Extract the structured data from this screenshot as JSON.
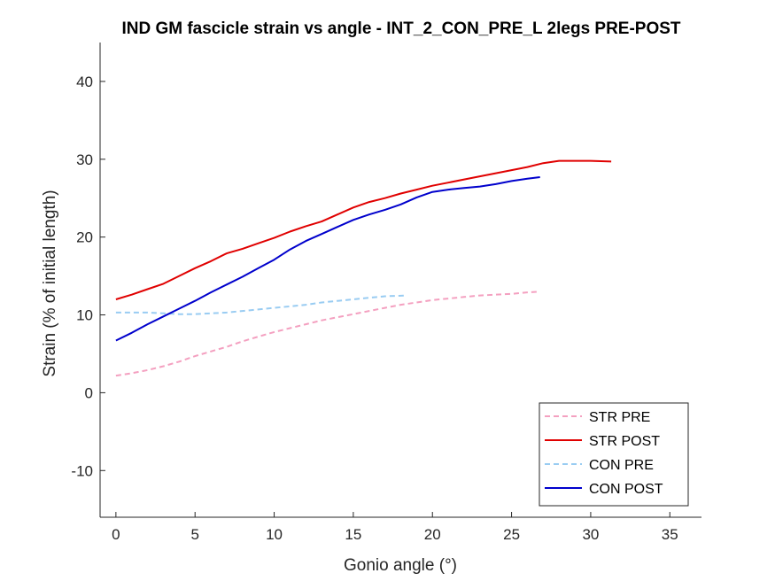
{
  "chart_data": {
    "type": "line",
    "title": "IND GM fascicle strain vs angle - INT_2_CON_PRE_L 2legs PRE-POST",
    "xlabel": "Gonio angle (°)",
    "ylabel": "Strain (% of initial length)",
    "xlim": [
      -1,
      37
    ],
    "ylim": [
      -16,
      45
    ],
    "xticks": [
      0,
      5,
      10,
      15,
      20,
      25,
      30,
      35
    ],
    "yticks": [
      -10,
      0,
      10,
      20,
      30,
      40
    ],
    "grid": false,
    "legend_position": "bottom-right",
    "series": [
      {
        "name": "STR PRE",
        "color": "#f4a0c0",
        "dash": true,
        "x": [
          0,
          1,
          2,
          3,
          4,
          5,
          6,
          7,
          8,
          9,
          10,
          11,
          12,
          13,
          14,
          15,
          16,
          17,
          18,
          19,
          20,
          21,
          22,
          23,
          24,
          25,
          26,
          26.8
        ],
        "y": [
          2.2,
          2.5,
          2.9,
          3.4,
          4.0,
          4.7,
          5.3,
          5.9,
          6.6,
          7.2,
          7.8,
          8.3,
          8.8,
          9.3,
          9.7,
          10.1,
          10.5,
          10.9,
          11.3,
          11.6,
          11.9,
          12.1,
          12.3,
          12.5,
          12.6,
          12.7,
          12.9,
          13.0
        ]
      },
      {
        "name": "STR POST",
        "color": "#e00000",
        "dash": false,
        "x": [
          0,
          1,
          2,
          3,
          4,
          5,
          6,
          7,
          8,
          9,
          10,
          11,
          12,
          13,
          14,
          15,
          16,
          17,
          18,
          19,
          20,
          21,
          22,
          23,
          24,
          25,
          26,
          27,
          28,
          29,
          30,
          31.3
        ],
        "y": [
          12.0,
          12.6,
          13.3,
          14.0,
          15.0,
          16.0,
          16.9,
          17.9,
          18.5,
          19.2,
          19.9,
          20.7,
          21.4,
          22.0,
          22.9,
          23.8,
          24.5,
          25.0,
          25.6,
          26.1,
          26.6,
          27.0,
          27.4,
          27.8,
          28.2,
          28.6,
          29.0,
          29.5,
          29.8,
          29.8,
          29.8,
          29.7
        ]
      },
      {
        "name": "CON PRE",
        "color": "#99ccf2",
        "dash": true,
        "x": [
          0,
          1,
          2,
          3,
          4,
          5,
          6,
          7,
          8,
          9,
          10,
          11,
          12,
          13,
          14,
          15,
          16,
          17,
          18.4
        ],
        "y": [
          10.3,
          10.3,
          10.3,
          10.2,
          10.1,
          10.1,
          10.2,
          10.3,
          10.5,
          10.7,
          10.9,
          11.1,
          11.3,
          11.6,
          11.8,
          12.0,
          12.2,
          12.4,
          12.5
        ]
      },
      {
        "name": "CON POST",
        "color": "#0000cc",
        "dash": false,
        "x": [
          0,
          1,
          2,
          3,
          4,
          5,
          6,
          7,
          8,
          9,
          10,
          11,
          12,
          13,
          14,
          15,
          16,
          17,
          18,
          19,
          20,
          21,
          22,
          23,
          24,
          25,
          26,
          26.8
        ],
        "y": [
          6.7,
          7.7,
          8.8,
          9.8,
          10.8,
          11.8,
          12.9,
          13.9,
          14.9,
          16.0,
          17.1,
          18.4,
          19.5,
          20.4,
          21.3,
          22.2,
          22.9,
          23.5,
          24.2,
          25.1,
          25.8,
          26.1,
          26.3,
          26.5,
          26.8,
          27.2,
          27.5,
          27.7
        ]
      }
    ]
  }
}
